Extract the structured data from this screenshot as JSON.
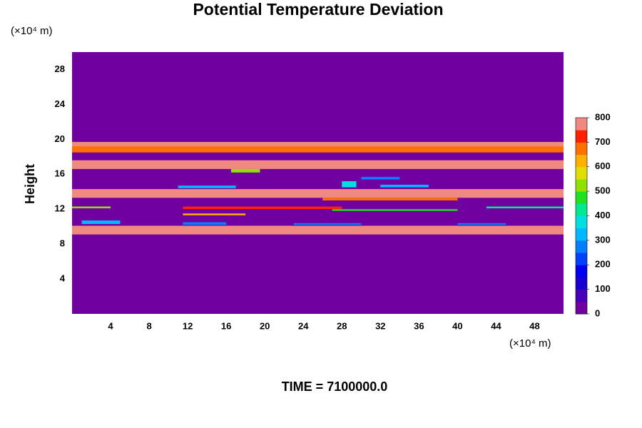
{
  "chart_data": {
    "type": "contour",
    "title": "Potential Temperature Deviation",
    "y_label": "Height",
    "y_unit": "(×10⁴ m)",
    "x_unit": "(×10⁴ m)",
    "footer": "TIME = 7100000.0",
    "xlim": [
      0,
      51
    ],
    "ylim": [
      0,
      30
    ],
    "xticks": [
      4,
      8,
      12,
      16,
      20,
      24,
      28,
      32,
      36,
      40,
      44,
      48
    ],
    "yticks": [
      4,
      8,
      12,
      16,
      20,
      24,
      28
    ],
    "background_value": 0,
    "colorbar": {
      "lim": [
        0,
        800
      ],
      "ticks": [
        0,
        100,
        200,
        300,
        400,
        500,
        600,
        700,
        800
      ],
      "colors": [
        "#7000a0",
        "#4800b8",
        "#1800d0",
        "#0000f0",
        "#0040ff",
        "#0080ff",
        "#00b8ff",
        "#00e0e0",
        "#00e890",
        "#20e020",
        "#90e000",
        "#e0e000",
        "#ffb000",
        "#ff7000",
        "#ff2000",
        "#f08a80"
      ]
    },
    "bands": [
      {
        "x": [
          0,
          51
        ],
        "y": [
          18.5,
          19.7
        ],
        "value": 650
      },
      {
        "x": [
          0,
          51
        ],
        "y": [
          19.2,
          19.7
        ],
        "value": 800
      },
      {
        "x": [
          0,
          51
        ],
        "y": [
          16.6,
          17.6
        ],
        "value": 800
      },
      {
        "x": [
          0,
          51
        ],
        "y": [
          13.3,
          14.3
        ],
        "value": 800
      },
      {
        "x": [
          0,
          51
        ],
        "y": [
          9.1,
          10.1
        ],
        "value": 800
      },
      {
        "x": [
          26,
          40
        ],
        "y": [
          13.0,
          13.3
        ],
        "value": 650
      },
      {
        "x": [
          0,
          4
        ],
        "y": [
          12.1,
          12.3
        ],
        "value": 500
      },
      {
        "x": [
          11.5,
          28
        ],
        "y": [
          12.0,
          12.3
        ],
        "value": 700
      },
      {
        "x": [
          27,
          40
        ],
        "y": [
          11.8,
          12.0
        ],
        "value": 450
      },
      {
        "x": [
          11.5,
          18
        ],
        "y": [
          11.3,
          11.5
        ],
        "value": 600
      },
      {
        "x": [
          43,
          51
        ],
        "y": [
          12.1,
          12.3
        ],
        "value": 400
      },
      {
        "x": [
          1,
          5
        ],
        "y": [
          10.3,
          10.7
        ],
        "value": 300
      },
      {
        "x": [
          11.5,
          16
        ],
        "y": [
          10.2,
          10.5
        ],
        "value": 250
      },
      {
        "x": [
          23,
          30
        ],
        "y": [
          10.2,
          10.4
        ],
        "value": 250
      },
      {
        "x": [
          40,
          45
        ],
        "y": [
          10.2,
          10.4
        ],
        "value": 250
      },
      {
        "x": [
          11,
          17
        ],
        "y": [
          14.4,
          14.7
        ],
        "value": 300
      },
      {
        "x": [
          28,
          29.5
        ],
        "y": [
          14.5,
          15.2
        ],
        "value": 350
      },
      {
        "x": [
          32,
          37
        ],
        "y": [
          14.5,
          14.8
        ],
        "value": 300
      },
      {
        "x": [
          30,
          34
        ],
        "y": [
          15.4,
          15.7
        ],
        "value": 250
      },
      {
        "x": [
          16.5,
          19.5
        ],
        "y": [
          16.2,
          16.6
        ],
        "value": 500
      }
    ]
  }
}
